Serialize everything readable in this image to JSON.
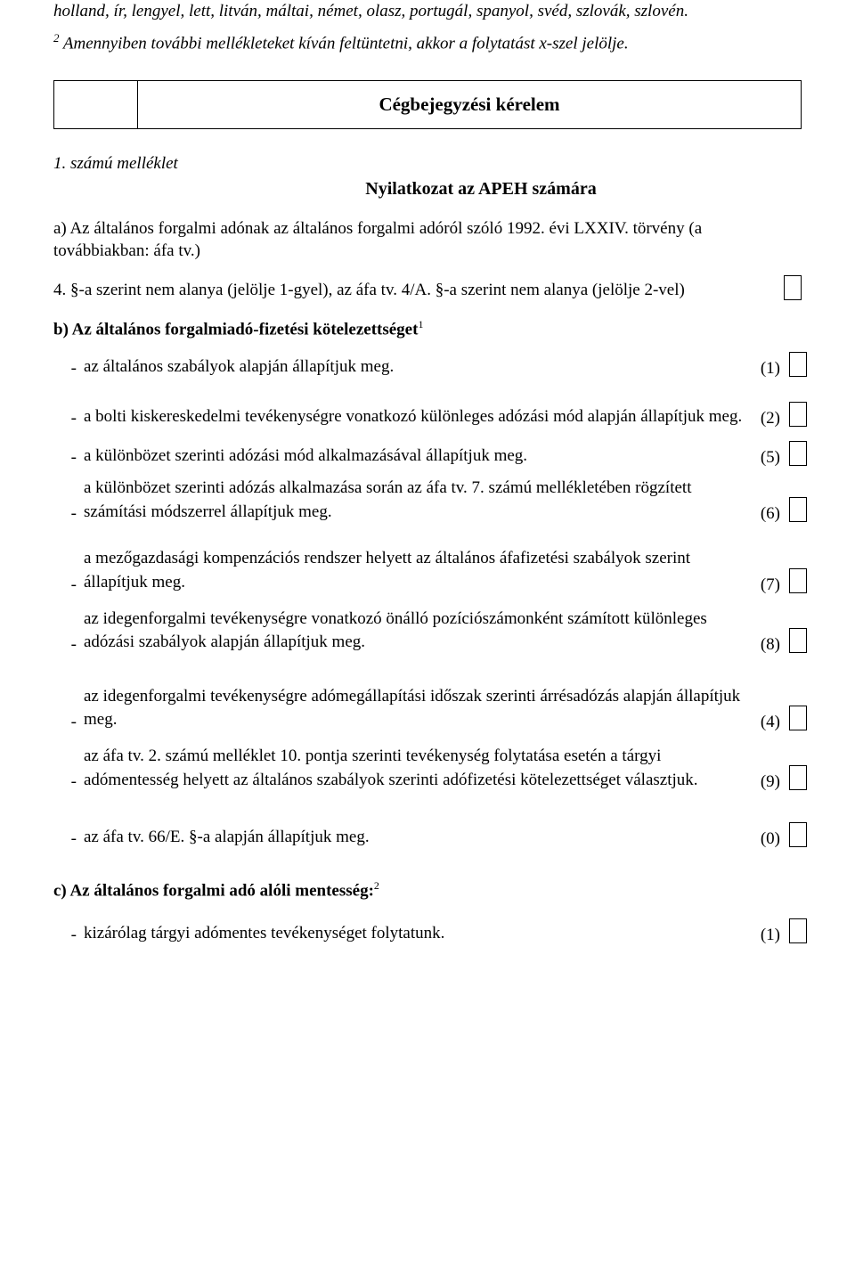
{
  "top_italic": "holland, ír, lengyel, lett, litván, máltai, német, olasz, portugál, spanyol, svéd, szlovák, szlovén.",
  "footnote_top_sup": "2",
  "footnote_top": " Amennyiben további mellékleteket kíván feltüntetni, akkor a folytatást x-szel jelölje.",
  "title": "Cégbejegyzési kérelem",
  "melleklet": "1. számú melléklet",
  "subtitle": "Nyilatkozat az APEH számára",
  "para_a_lead": "a) Az általános forgalmi adónak az általános forgalmi adóról szóló 1992. évi LXXIV. törvény (a továbbiakban: áfa tv.)",
  "para_a_4": "4. §-a szerint nem alanya (jelölje 1-gyel), az áfa tv. 4/A. §-a szerint nem alanya (jelölje 2-vel)",
  "section_b": "b) Az általános forgalmiadó-fizetési kötelezettséget",
  "section_b_sup": "1",
  "items": [
    {
      "text": "az általános szabályok alapján állapítjuk meg.",
      "num": "(1)"
    },
    {
      "text": "a bolti kiskereskedelmi tevékenységre vonatkozó különleges adózási mód alapján állapítjuk meg.",
      "num": "(2)"
    },
    {
      "text": "a különbözet szerinti adózási mód alkalmazásával állapítjuk meg.",
      "num": "(5)"
    },
    {
      "text": "a különbözet szerinti adózás alkalmazása során az áfa tv. 7. számú mellékletében rögzített számítási módszerrel\nállapítjuk meg.",
      "num": "(6)"
    },
    {
      "text": "a mezőgazdasági kompenzációs rendszer helyett az általános áfafizetési szabályok szerint állapítjuk meg.",
      "num": "(7)"
    },
    {
      "text": "az idegenforgalmi tevékenységre vonatkozó önálló pozíciószámonként számított különleges adózási szabályok\nalapján állapítjuk meg.",
      "num": "(8)"
    },
    {
      "text": "az idegenforgalmi tevékenységre adómegállapítási időszak szerinti árrésadózás alapján állapítjuk meg.",
      "num": "(4)"
    },
    {
      "text": "az áfa tv. 2. számú melléklet 10. pontja szerinti tevékenység folytatása esetén a tárgyi adómentesség helyett\naz általános szabályok szerinti adófizetési kötelezettséget választjuk.",
      "num": "(9)"
    },
    {
      "text": "az áfa tv. 66/E. §-a alapján állapítjuk meg.",
      "num": "(0)"
    }
  ],
  "section_c": "c) Az általános forgalmi adó alóli mentesség:",
  "section_c_sup": "2",
  "item_c1": {
    "text": "kizárólag tárgyi adómentes tevékenységet folytatunk.",
    "num": "(1)"
  }
}
